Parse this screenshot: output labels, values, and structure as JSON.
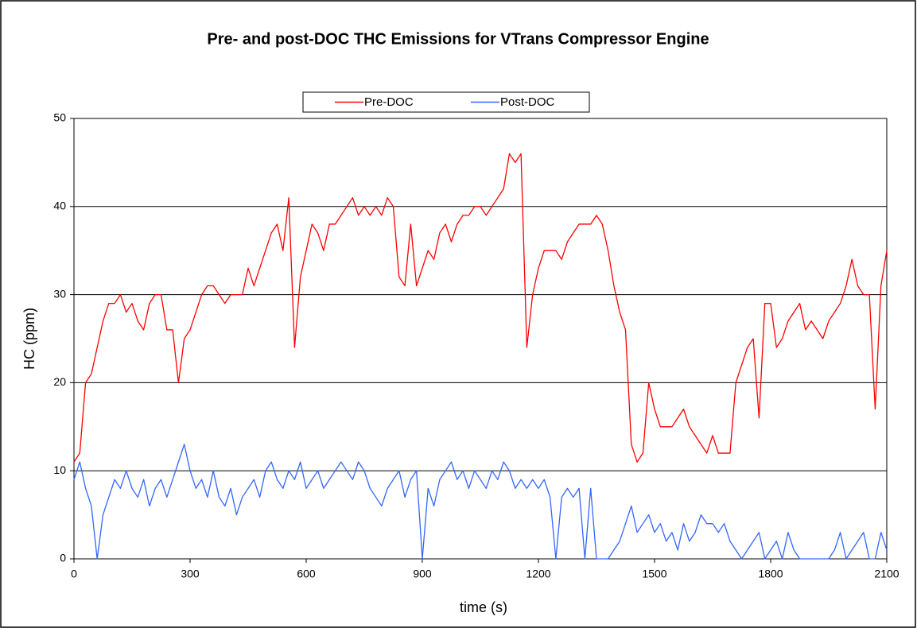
{
  "chart_data": {
    "type": "line",
    "title": "Pre- and post-DOC THC Emissions for VTrans Compressor Engine",
    "x_label": "time (s)",
    "y_label": "HC (ppm)",
    "x": [
      0,
      15,
      30,
      45,
      60,
      75,
      90,
      105,
      120,
      135,
      150,
      165,
      180,
      195,
      210,
      225,
      240,
      255,
      270,
      285,
      300,
      315,
      330,
      345,
      360,
      375,
      390,
      405,
      420,
      435,
      450,
      465,
      480,
      495,
      510,
      525,
      540,
      555,
      570,
      585,
      600,
      615,
      630,
      645,
      660,
      675,
      690,
      705,
      720,
      735,
      750,
      765,
      780,
      795,
      810,
      825,
      840,
      855,
      870,
      885,
      900,
      915,
      930,
      945,
      960,
      975,
      990,
      1005,
      1020,
      1035,
      1050,
      1065,
      1080,
      1095,
      1110,
      1125,
      1140,
      1155,
      1170,
      1185,
      1200,
      1215,
      1230,
      1245,
      1260,
      1275,
      1290,
      1305,
      1320,
      1335,
      1350,
      1365,
      1380,
      1395,
      1410,
      1425,
      1440,
      1455,
      1470,
      1485,
      1500,
      1515,
      1530,
      1545,
      1560,
      1575,
      1590,
      1605,
      1620,
      1635,
      1650,
      1665,
      1680,
      1695,
      1710,
      1725,
      1740,
      1755,
      1770,
      1785,
      1800,
      1815,
      1830,
      1845,
      1860,
      1875,
      1890,
      1905,
      1920,
      1935,
      1950,
      1965,
      1980,
      1995,
      2010,
      2025,
      2040,
      2055,
      2070,
      2085,
      2100
    ],
    "series": [
      {
        "name": "Pre-DOC",
        "color": "#ff0000",
        "values": [
          11,
          12,
          20,
          21,
          24,
          27,
          29,
          29,
          30,
          28,
          29,
          27,
          26,
          29,
          30,
          30,
          26,
          26,
          20,
          25,
          26,
          28,
          30,
          31,
          31,
          30,
          29,
          30,
          30,
          30,
          33,
          31,
          33,
          35,
          37,
          38,
          35,
          41,
          24,
          32,
          35,
          38,
          37,
          35,
          38,
          38,
          39,
          40,
          41,
          39,
          40,
          39,
          40,
          39,
          41,
          40,
          32,
          31,
          38,
          31,
          33,
          35,
          34,
          37,
          38,
          36,
          38,
          39,
          39,
          40,
          40,
          39,
          40,
          41,
          42,
          46,
          45,
          46,
          24,
          30,
          33,
          35,
          35,
          35,
          34,
          36,
          37,
          38,
          38,
          38,
          39,
          38,
          35,
          31,
          28,
          26,
          13,
          11,
          12,
          20,
          17,
          15,
          15,
          15,
          16,
          17,
          15,
          14,
          13,
          12,
          14,
          12,
          12,
          12,
          20,
          22,
          24,
          25,
          16,
          29,
          29,
          24,
          25,
          27,
          28,
          29,
          26,
          27,
          26,
          25,
          27,
          28,
          29,
          31,
          34,
          31,
          30,
          30,
          17,
          31,
          35
        ]
      },
      {
        "name": "Post-DOC",
        "color": "#3366ff",
        "values": [
          9,
          11,
          8,
          6,
          0,
          5,
          7,
          9,
          8,
          10,
          8,
          7,
          9,
          6,
          8,
          9,
          7,
          9,
          11,
          13,
          10,
          8,
          9,
          7,
          10,
          7,
          6,
          8,
          5,
          7,
          8,
          9,
          7,
          10,
          11,
          9,
          8,
          10,
          9,
          11,
          8,
          9,
          10,
          8,
          9,
          10,
          11,
          10,
          9,
          11,
          10,
          8,
          7,
          6,
          8,
          9,
          10,
          7,
          9,
          10,
          0,
          8,
          6,
          9,
          10,
          11,
          9,
          10,
          8,
          10,
          9,
          8,
          10,
          9,
          11,
          10,
          8,
          9,
          8,
          9,
          8,
          9,
          7,
          0,
          7,
          8,
          7,
          8,
          0,
          8,
          0,
          0,
          0,
          1,
          2,
          4,
          6,
          3,
          4,
          5,
          3,
          4,
          2,
          3,
          1,
          4,
          2,
          3,
          5,
          4,
          4,
          3,
          4,
          2,
          1,
          0,
          1,
          2,
          3,
          0,
          1,
          2,
          0,
          3,
          1,
          0,
          0,
          0,
          0,
          0,
          0,
          1,
          3,
          0,
          1,
          2,
          3,
          0,
          0,
          3,
          1
        ]
      }
    ],
    "xlim": [
      0,
      2100
    ],
    "xticks": [
      0,
      300,
      600,
      900,
      1200,
      1500,
      1800,
      2100
    ],
    "ylim": [
      0,
      50
    ],
    "yticks": [
      0,
      10,
      20,
      30,
      40,
      50
    ],
    "grid": true,
    "legend": "top"
  }
}
